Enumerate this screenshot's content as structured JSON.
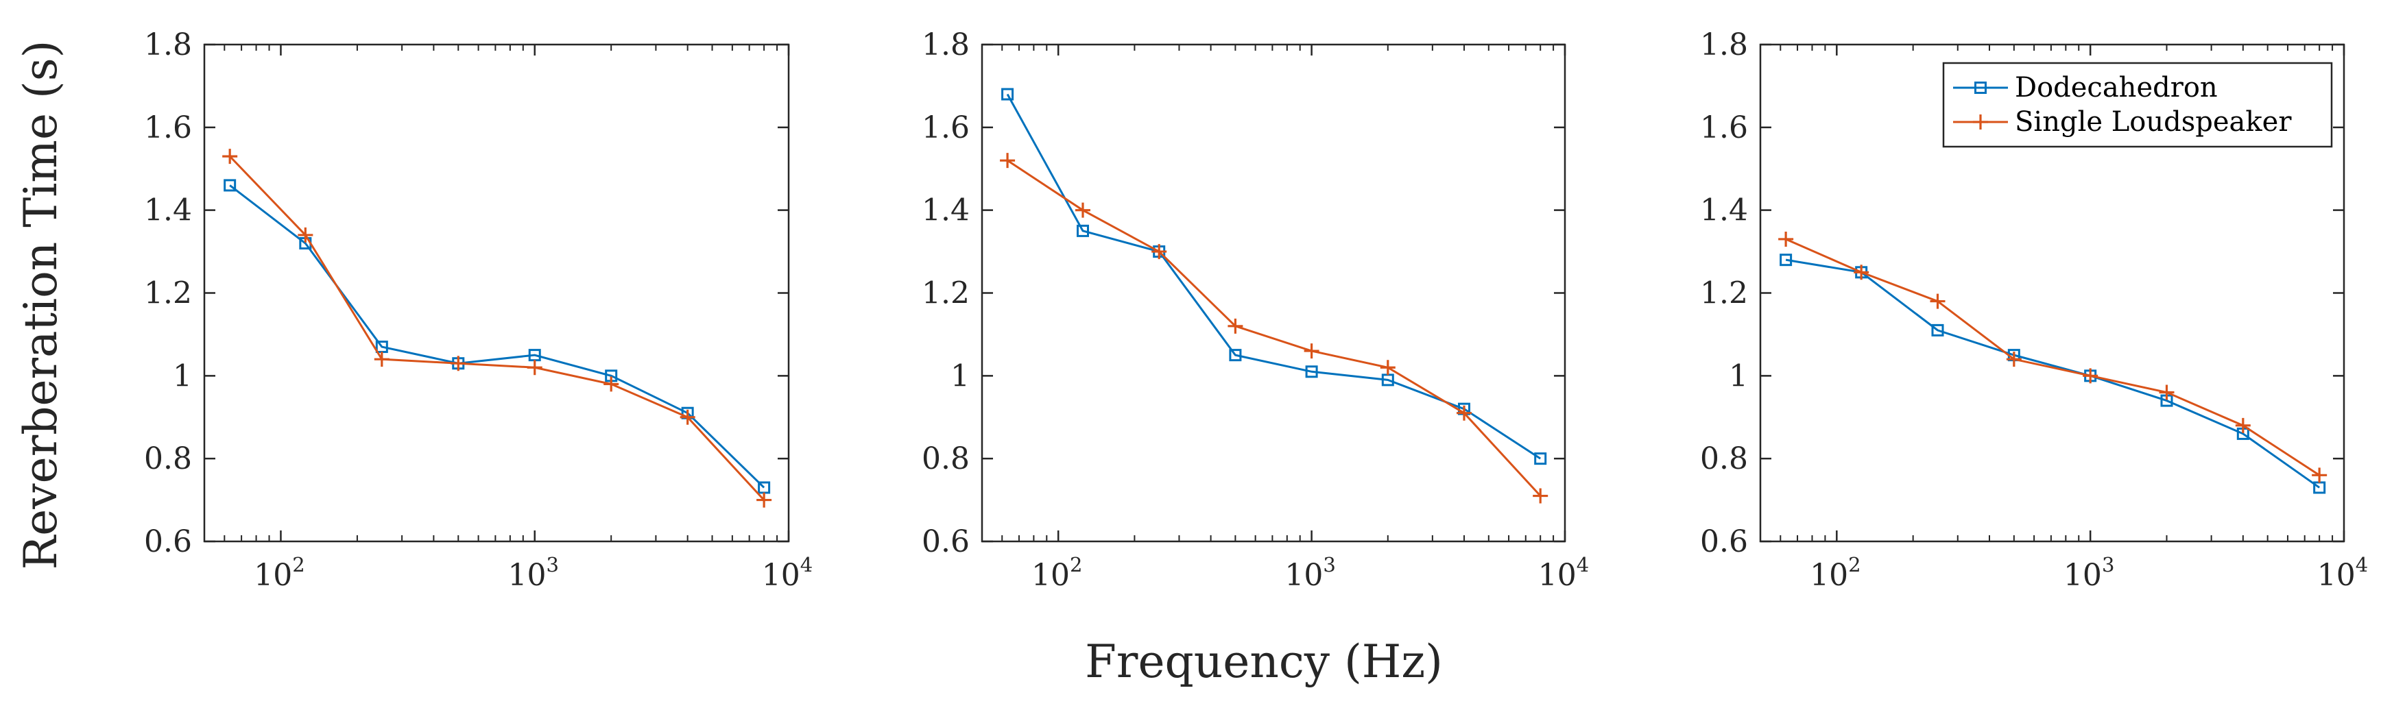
{
  "chart_data": {
    "type": "line",
    "ylabel": "Reverberation Time (s)",
    "xlabel": "Frequency (Hz)",
    "x_scale": "log",
    "xlim": [
      50,
      10000
    ],
    "ylim": [
      0.6,
      1.8
    ],
    "y_ticks": [
      0.6,
      0.8,
      1.0,
      1.2,
      1.4,
      1.6,
      1.8
    ],
    "y_tick_labels": [
      "0.6",
      "0.8",
      "1",
      "1.2",
      "1.4",
      "1.6",
      "1.8"
    ],
    "x_ticks": [
      {
        "value": 100,
        "base": "10",
        "exp": "2"
      },
      {
        "value": 1000,
        "base": "10",
        "exp": "3"
      },
      {
        "value": 10000,
        "base": "10",
        "exp": "4"
      }
    ],
    "colors": {
      "Dodecahedron": "#0072BD",
      "Single Loudspeaker": "#D95319"
    },
    "legend": {
      "location": "top-right",
      "panel": 3,
      "entries": [
        {
          "name": "Dodecahedron",
          "marker": "square"
        },
        {
          "name": "Single Loudspeaker",
          "marker": "plus"
        }
      ]
    },
    "panels": [
      {
        "x": [
          63,
          125,
          250,
          500,
          1000,
          2000,
          4000,
          8000
        ],
        "series": [
          {
            "name": "Dodecahedron",
            "values": [
              1.46,
              1.32,
              1.07,
              1.03,
              1.05,
              1.0,
              0.91,
              0.73
            ]
          },
          {
            "name": "Single Loudspeaker",
            "values": [
              1.53,
              1.34,
              1.04,
              1.03,
              1.02,
              0.98,
              0.9,
              0.7
            ]
          }
        ]
      },
      {
        "x": [
          63,
          125,
          250,
          500,
          1000,
          2000,
          4000,
          8000
        ],
        "series": [
          {
            "name": "Dodecahedron",
            "values": [
              1.68,
              1.35,
              1.3,
              1.05,
              1.01,
              0.99,
              0.92,
              0.8
            ]
          },
          {
            "name": "Single Loudspeaker",
            "values": [
              1.52,
              1.4,
              1.3,
              1.12,
              1.06,
              1.02,
              0.91,
              0.71
            ]
          }
        ]
      },
      {
        "x": [
          63,
          125,
          250,
          500,
          1000,
          2000,
          4000,
          8000
        ],
        "series": [
          {
            "name": "Dodecahedron",
            "values": [
              1.28,
              1.25,
              1.11,
              1.05,
              1.0,
              0.94,
              0.86,
              0.73
            ]
          },
          {
            "name": "Single Loudspeaker",
            "values": [
              1.33,
              1.25,
              1.18,
              1.04,
              1.0,
              0.96,
              0.88,
              0.76
            ]
          }
        ]
      }
    ]
  }
}
